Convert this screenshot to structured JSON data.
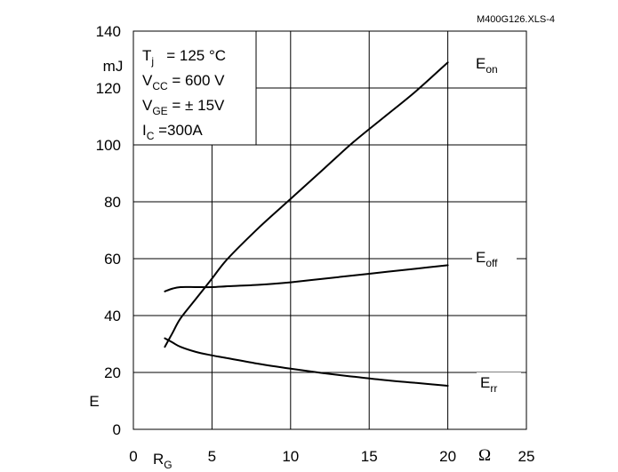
{
  "chart_data": {
    "type": "line",
    "source_label": "M400G126.XLS-4",
    "x_axis": {
      "label_main": "R",
      "label_sub": "G",
      "unit": "Ω",
      "min": 0,
      "max": 25,
      "ticks": [
        0,
        5,
        10,
        15,
        20,
        25
      ],
      "tick_labels": [
        "0",
        "5",
        "10",
        "15",
        "20",
        "25"
      ]
    },
    "y_axis": {
      "label": "E",
      "unit": "mJ",
      "min": 0,
      "max": 140,
      "ticks": [
        0,
        20,
        40,
        60,
        80,
        100,
        120,
        140
      ],
      "tick_labels": [
        "0",
        "20",
        "40",
        "60",
        "80",
        "100",
        "120",
        "140"
      ]
    },
    "grid": true,
    "conditions": [
      {
        "main": "T",
        "sub": "j",
        "rest": "   = 125 °C"
      },
      {
        "main": "V",
        "sub": "CC",
        "rest": " = 600 V"
      },
      {
        "main": "V",
        "sub": "GE",
        "rest": " = ± 15V"
      },
      {
        "main": "I",
        "sub": "C",
        "rest": " =300A"
      }
    ],
    "series": [
      {
        "name_main": "E",
        "name_sub": "on",
        "x": [
          2,
          2.5,
          3,
          4,
          5,
          6,
          8,
          10,
          12,
          14,
          16,
          18,
          20
        ],
        "y": [
          29,
          34,
          39,
          46,
          53,
          60,
          71,
          81,
          91,
          101,
          110,
          119,
          129
        ]
      },
      {
        "name_main": "E",
        "name_sub": "off",
        "x": [
          2,
          2.5,
          3,
          4,
          5,
          6,
          8,
          10,
          12,
          14,
          16,
          18,
          20
        ],
        "y": [
          48.5,
          49.5,
          50,
          50,
          50,
          50.3,
          50.8,
          51.7,
          52.9,
          54.1,
          55.3,
          56.5,
          57.7
        ]
      },
      {
        "name_main": "E",
        "name_sub": "rr",
        "x": [
          2,
          2.5,
          3,
          4,
          5,
          6,
          8,
          10,
          12,
          14,
          16,
          18,
          20
        ],
        "y": [
          32,
          30.5,
          29,
          27.2,
          26,
          25,
          23,
          21.3,
          19.8,
          18.5,
          17.3,
          16.3,
          15.3
        ]
      }
    ]
  }
}
